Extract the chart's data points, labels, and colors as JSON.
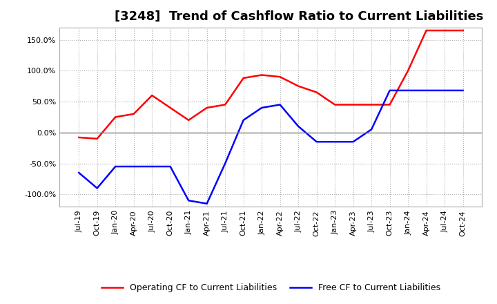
{
  "title": "[3248]  Trend of Cashflow Ratio to Current Liabilities",
  "x_labels": [
    "Jul-19",
    "Oct-19",
    "Jan-20",
    "Apr-20",
    "Jul-20",
    "Oct-20",
    "Jan-21",
    "Apr-21",
    "Jul-21",
    "Oct-21",
    "Jan-22",
    "Apr-22",
    "Jul-22",
    "Oct-22",
    "Jan-23",
    "Apr-23",
    "Jul-23",
    "Oct-23",
    "Jan-24",
    "Apr-24",
    "Jul-24",
    "Oct-24"
  ],
  "operating_cf": [
    -8,
    -10,
    25,
    30,
    60,
    40,
    20,
    40,
    45,
    88,
    93,
    90,
    75,
    65,
    45,
    45,
    45,
    45,
    100,
    165,
    165,
    165
  ],
  "free_cf": [
    -65,
    -90,
    -55,
    -55,
    -55,
    -55,
    -110,
    -115,
    -50,
    20,
    40,
    45,
    10,
    -15,
    -15,
    -15,
    5,
    68,
    68,
    68,
    68,
    68
  ],
  "ylim": [
    -120,
    170
  ],
  "yticks": [
    -100,
    -50,
    0,
    50,
    100,
    150
  ],
  "operating_color": "#ff0000",
  "free_color": "#0000ff",
  "grid_color": "#b0b0b0",
  "zero_line_color": "#808080",
  "background_color": "#ffffff",
  "title_fontsize": 13,
  "legend_fontsize": 9,
  "tick_fontsize": 8
}
